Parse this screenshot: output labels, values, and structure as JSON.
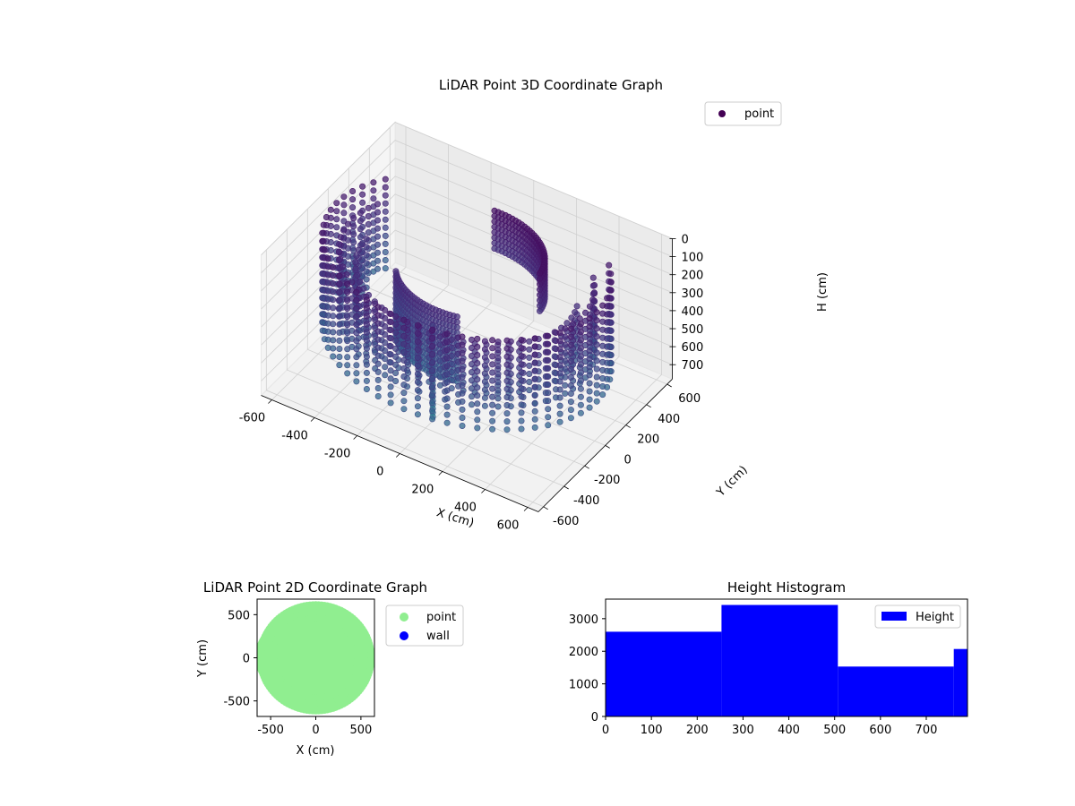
{
  "chart_data": [
    {
      "type": "scatter",
      "title": "LiDAR Point 3D Coordinate Graph",
      "xlabel": "X (cm)",
      "ylabel": "Y (cm)",
      "zlabel": "H (cm)",
      "projection": "3d",
      "xlim": [
        -650,
        650
      ],
      "ylim": [
        -650,
        650
      ],
      "zlim": [
        0,
        780
      ],
      "z_inverted": true,
      "x_ticks": [
        "-600",
        "-400",
        "-200",
        "0",
        "200",
        "400",
        "600"
      ],
      "y_ticks": [
        "-600",
        "-400",
        "-200",
        "0",
        "200",
        "400",
        "600"
      ],
      "z_ticks": [
        "0",
        "100",
        "200",
        "300",
        "400",
        "500",
        "600",
        "700"
      ],
      "legend": {
        "position": "top-right",
        "entries": [
          {
            "label": "point",
            "color": "#440154"
          }
        ]
      },
      "colormap": "viridis",
      "grid": true,
      "shapes": [
        {
          "shape": "ring",
          "radius": 610,
          "h_from": 60,
          "h_to": 560,
          "theta_from": 150,
          "theta_to": 400
        },
        {
          "shape": "ring",
          "radius": 540,
          "h_from": 120,
          "h_to": 520,
          "theta_from": 160,
          "theta_to": 395
        },
        {
          "shape": "ring",
          "radius": 470,
          "h_from": 190,
          "h_to": 500,
          "theta_from": 180,
          "theta_to": 380
        },
        {
          "shape": "wall",
          "radius": 330,
          "h_from": 0,
          "h_to": 220,
          "theta_from": 5,
          "theta_to": 95
        },
        {
          "shape": "wall",
          "radius": 300,
          "h_from": 180,
          "h_to": 560,
          "theta_from": 210,
          "theta_to": 290
        },
        {
          "shape": "column",
          "x": 0,
          "y": -330,
          "h_from": 250,
          "h_to": 770
        }
      ]
    },
    {
      "type": "scatter",
      "title": "LiDAR Point 2D Coordinate Graph",
      "xlabel": "X (cm)",
      "ylabel": "Y (cm)",
      "xlim": [
        -650,
        650
      ],
      "ylim": [
        -680,
        680
      ],
      "x_ticks": [
        "-500",
        "0",
        "500"
      ],
      "y_ticks": [
        "-500",
        "0",
        "500"
      ],
      "legend": {
        "position": "outside-right",
        "entries": [
          {
            "label": "point",
            "color": "#90ee90"
          },
          {
            "label": "wall",
            "color": "#0000ff"
          }
        ]
      },
      "grid": false,
      "series": [
        {
          "name": "point",
          "color": "#90ee90",
          "coverage": "filled disk of radius ~650 cm with ring-shaped bands"
        },
        {
          "name": "wall",
          "color": "#0000ff",
          "values": []
        }
      ]
    },
    {
      "type": "bar",
      "title": "Height Histogram",
      "xlabel": "",
      "ylabel": "",
      "xlim": [
        0,
        790
      ],
      "ylim": [
        0,
        3600
      ],
      "x_ticks": [
        "0",
        "100",
        "200",
        "300",
        "400",
        "500",
        "600",
        "700"
      ],
      "y_ticks": [
        "0",
        "1000",
        "2000",
        "3000"
      ],
      "legend": {
        "position": "top-right",
        "entries": [
          {
            "label": "Height",
            "color": "#0000ff"
          }
        ]
      },
      "bins": [
        {
          "from": 0,
          "to": 253,
          "count": 2600
        },
        {
          "from": 253,
          "to": 507,
          "count": 3420
        },
        {
          "from": 507,
          "to": 760,
          "count": 1530
        },
        {
          "from": 760,
          "to": 790,
          "count": 2070
        }
      ],
      "color": "#0000ff",
      "grid": false
    }
  ]
}
